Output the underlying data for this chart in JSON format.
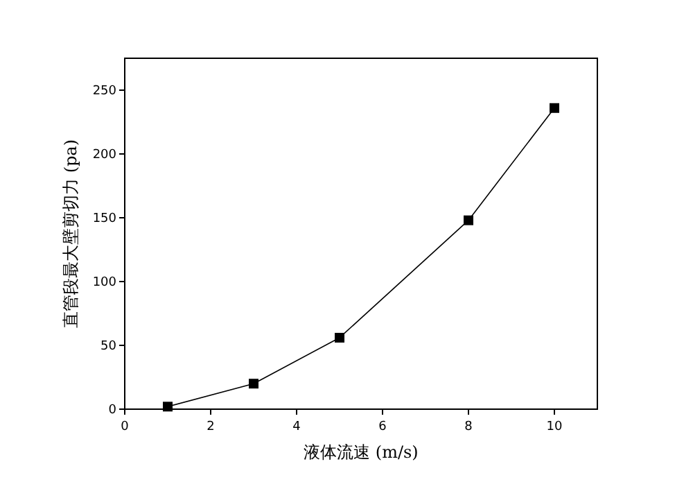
{
  "chart_data": {
    "type": "line",
    "xlabel": "液体流速 (m/s)",
    "ylabel": "直管段最大壁剪切力 (pa)",
    "x": [
      1,
      3,
      5,
      8,
      10
    ],
    "series": [
      {
        "color": "#000000",
        "values": [
          2,
          20,
          56,
          148,
          236
        ]
      }
    ],
    "xlim": [
      0,
      11
    ],
    "xticks": [
      0,
      2,
      4,
      6,
      8,
      10
    ],
    "ylim": [
      0,
      275
    ],
    "yticks": [
      0,
      50,
      100,
      150,
      200,
      250
    ],
    "marker": "square",
    "line_style": "solid",
    "grid": false
  }
}
